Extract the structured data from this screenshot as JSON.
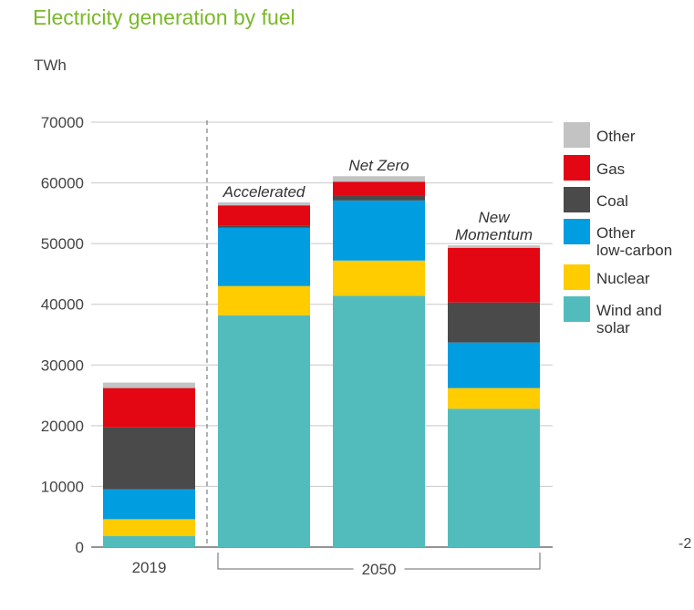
{
  "title": "Electricity generation by fuel",
  "unit": "TWh",
  "page_number": "-2",
  "chart_data": {
    "type": "bar",
    "stacked": true,
    "categories": [
      "2019",
      "Accelerated",
      "Net Zero",
      "New Momentum"
    ],
    "scenario_labels": [
      "",
      "Accelerated",
      "Net Zero",
      "New\nMomentum"
    ],
    "group_labels": [
      {
        "label": "2019",
        "bars": [
          0
        ]
      },
      {
        "label": "2050",
        "bars": [
          1,
          2,
          3
        ]
      }
    ],
    "ylim": [
      0,
      70000
    ],
    "yticks": [
      0,
      10000,
      20000,
      30000,
      40000,
      50000,
      60000,
      70000
    ],
    "ylabel": "TWh",
    "series": [
      {
        "name": "Wind and solar",
        "color": "#52bcbc",
        "values": [
          1800,
          38200,
          41400,
          22800
        ]
      },
      {
        "name": "Nuclear",
        "color": "#ffcc00",
        "values": [
          2800,
          4800,
          5800,
          3400
        ]
      },
      {
        "name": "Other low-carbon",
        "color": "#009de0",
        "values": [
          4900,
          9600,
          9900,
          7500
        ]
      },
      {
        "name": "Coal",
        "color": "#4a4a4a",
        "values": [
          10200,
          300,
          800,
          6600
        ]
      },
      {
        "name": "Gas",
        "color": "#e30613",
        "values": [
          6500,
          3400,
          2300,
          9000
        ]
      },
      {
        "name": "Other",
        "color": "#c3c3c3",
        "values": [
          900,
          500,
          900,
          400
        ]
      }
    ],
    "legend": {
      "position": "right",
      "order": [
        "Other",
        "Gas",
        "Coal",
        "Other low-carbon",
        "Nuclear",
        "Wind and solar"
      ]
    },
    "grid": true
  }
}
